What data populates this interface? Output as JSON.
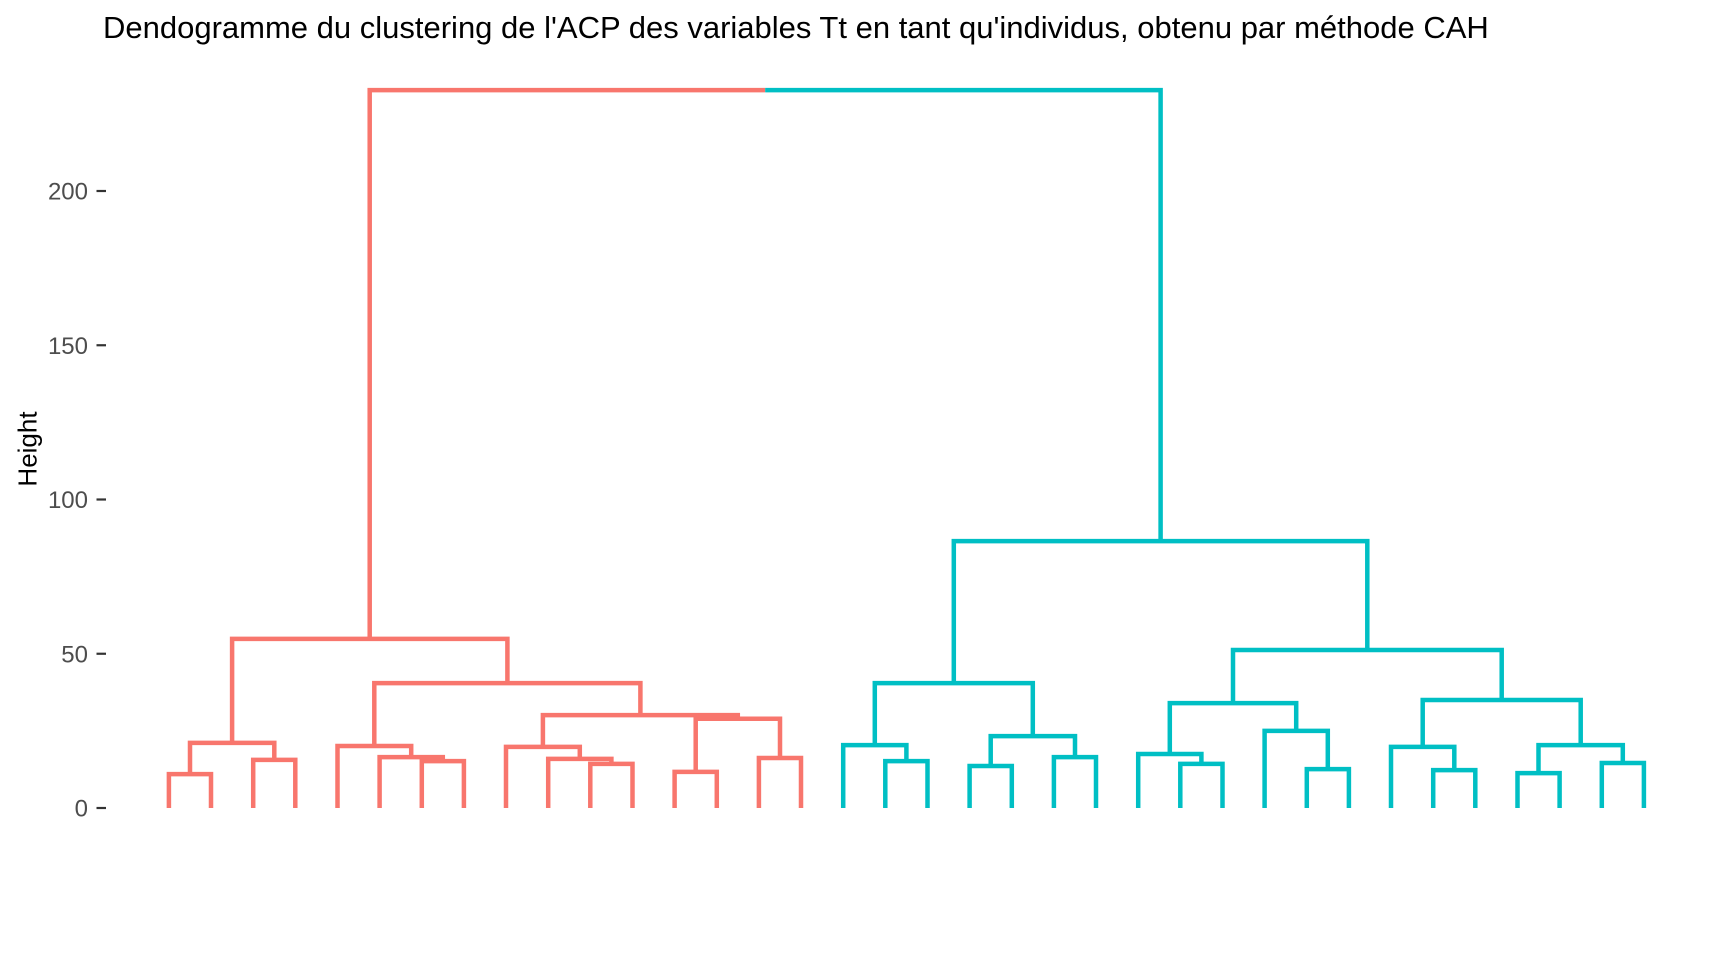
{
  "chart_data": {
    "type": "dendrogram",
    "title": "Dendogramme du clustering de l'ACP des variables Tt en tant qu'individus, obtenu par méthode CAH",
    "ylabel": "Height",
    "yticks": [
      0,
      50,
      100,
      150,
      200
    ],
    "ylim": [
      0,
      233
    ],
    "grid": "off",
    "legend": "none",
    "x_axis_labels": "none",
    "leaf_count": 36,
    "root_height": 232.7,
    "colors": {
      "cluster_left": "#F8766D",
      "cluster_right": "#00BFC4",
      "axis_text": "#4D4D4D",
      "tick_mark": "#333333",
      "title_text": "#000000"
    },
    "clusters": [
      {
        "name": "cluster-1-red",
        "color": "#F8766D",
        "tree": {
          "h": 54.8,
          "c": [
            {
              "h": 21.1,
              "c": [
                {
                  "h": 11.0,
                  "c": [
                    {
                      "leaf": 1
                    },
                    {
                      "leaf": 2
                    }
                  ]
                },
                {
                  "h": 15.6,
                  "c": [
                    {
                      "leaf": 3
                    },
                    {
                      "leaf": 4
                    }
                  ]
                }
              ]
            },
            {
              "h": 40.5,
              "c": [
                {
                  "h": 20.1,
                  "c": [
                    {
                      "leaf": 5
                    },
                    {
                      "h": 16.5,
                      "c": [
                        {
                          "leaf": 6
                        },
                        {
                          "h": 15.2,
                          "c": [
                            {
                              "leaf": 7
                            },
                            {
                              "leaf": 8
                            }
                          ]
                        }
                      ]
                    }
                  ]
                },
                {
                  "h": 30.1,
                  "c": [
                    {
                      "h": 19.8,
                      "c": [
                        {
                          "leaf": 9
                        },
                        {
                          "h": 15.9,
                          "c": [
                            {
                              "leaf": 10
                            },
                            {
                              "h": 14.3,
                              "c": [
                                {
                                  "leaf": 11
                                },
                                {
                                  "leaf": 12
                                }
                              ]
                            }
                          ]
                        }
                      ]
                    },
                    {
                      "h": 28.9,
                      "c": [
                        {
                          "h": 11.7,
                          "c": [
                            {
                              "leaf": 13
                            },
                            {
                              "leaf": 14
                            }
                          ]
                        },
                        {
                          "h": 16.2,
                          "c": [
                            {
                              "leaf": 15
                            },
                            {
                              "leaf": 16
                            }
                          ]
                        }
                      ]
                    }
                  ]
                }
              ]
            }
          ]
        }
      },
      {
        "name": "cluster-2-teal",
        "color": "#00BFC4",
        "tree": {
          "h": 86.5,
          "c": [
            {
              "h": 40.5,
              "c": [
                {
                  "h": 20.4,
                  "c": [
                    {
                      "leaf": 17
                    },
                    {
                      "h": 15.2,
                      "c": [
                        {
                          "leaf": 18
                        },
                        {
                          "leaf": 19
                        }
                      ]
                    }
                  ]
                },
                {
                  "h": 23.3,
                  "c": [
                    {
                      "h": 13.6,
                      "c": [
                        {
                          "leaf": 20
                        },
                        {
                          "leaf": 21
                        }
                      ]
                    },
                    {
                      "h": 16.5,
                      "c": [
                        {
                          "leaf": 22
                        },
                        {
                          "leaf": 23
                        }
                      ]
                    }
                  ]
                }
              ]
            },
            {
              "h": 51.2,
              "c": [
                {
                  "h": 34.0,
                  "c": [
                    {
                      "h": 17.5,
                      "c": [
                        {
                          "leaf": 24
                        },
                        {
                          "h": 14.3,
                          "c": [
                            {
                              "leaf": 25
                            },
                            {
                              "leaf": 26
                            }
                          ]
                        }
                      ]
                    },
                    {
                      "h": 25.0,
                      "c": [
                        {
                          "leaf": 27
                        },
                        {
                          "h": 12.6,
                          "c": [
                            {
                              "leaf": 28
                            },
                            {
                              "leaf": 29
                            }
                          ]
                        }
                      ]
                    }
                  ]
                },
                {
                  "h": 35.0,
                  "c": [
                    {
                      "h": 19.8,
                      "c": [
                        {
                          "leaf": 30
                        },
                        {
                          "h": 12.3,
                          "c": [
                            {
                              "leaf": 31
                            },
                            {
                              "leaf": 32
                            }
                          ]
                        }
                      ]
                    },
                    {
                      "h": 20.4,
                      "c": [
                        {
                          "h": 11.3,
                          "c": [
                            {
                              "leaf": 33
                            },
                            {
                              "leaf": 34
                            }
                          ]
                        },
                        {
                          "h": 14.6,
                          "c": [
                            {
                              "leaf": 35
                            },
                            {
                              "leaf": 36
                            }
                          ]
                        }
                      ]
                    }
                  ]
                }
              ]
            }
          ]
        }
      }
    ]
  }
}
